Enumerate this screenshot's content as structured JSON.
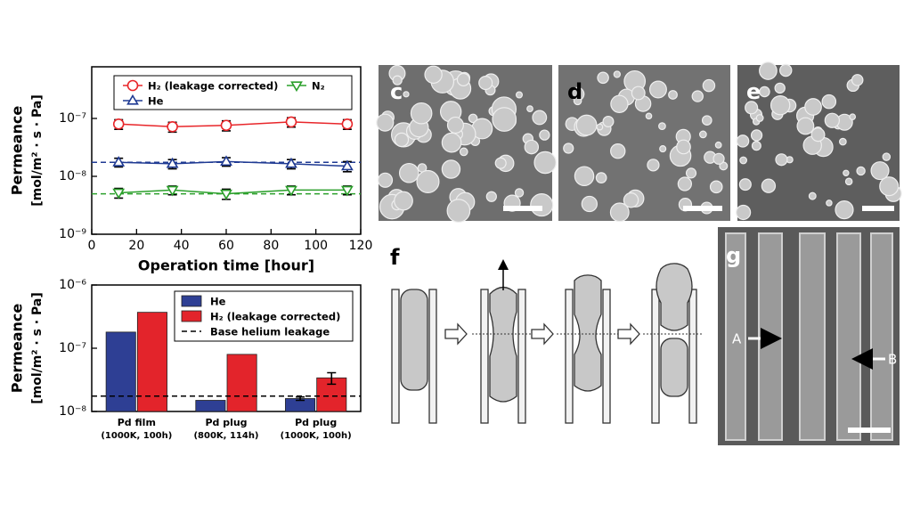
{
  "chart_data": [
    {
      "type": "line",
      "ylabel": [
        "Permeance",
        "[mol/m² · s · Pa]"
      ],
      "xlabel": "Operation time [hour]",
      "xlim": [
        0,
        120
      ],
      "xticks": [
        0,
        20,
        40,
        60,
        80,
        100,
        120
      ],
      "ylim": [
        1e-09,
        7.8e-07
      ],
      "log_y": true,
      "yticks": [
        {
          "value": 1e-09,
          "label": "10⁻⁹"
        },
        {
          "value": 1e-08,
          "label": "10⁻⁸"
        },
        {
          "value": 1e-07,
          "label": "10⁻⁷"
        }
      ],
      "x": [
        12,
        36,
        60,
        89,
        114
      ],
      "series": [
        {
          "name": "H₂ (leakage corrected)",
          "color": "#e8262a",
          "marker": "circle",
          "values": [
            8e-08,
            7.2e-08,
            7.6e-08,
            8.7e-08,
            8e-08
          ],
          "errors": [
            1.5e-08,
            1.4e-08,
            1.5e-08,
            1.6e-08,
            1.5e-08
          ]
        },
        {
          "name": "He",
          "color": "#1f3a93",
          "marker": "triangle-up",
          "values": [
            1.75e-08,
            1.65e-08,
            1.8e-08,
            1.65e-08,
            1.5e-08
          ],
          "errors": [
            3e-09,
            3e-09,
            3e-09,
            3e-09,
            3e-09
          ]
        },
        {
          "name": "N₂",
          "color": "#2ca02c",
          "marker": "triangle-down",
          "values": [
            5.2e-09,
            5.8e-09,
            5e-09,
            5.8e-09,
            5.8e-09
          ],
          "errors": [
            1e-09,
            1e-09,
            1e-09,
            1e-09,
            1e-09
          ]
        }
      ],
      "reference_lines": [
        {
          "value": 1.75e-08,
          "color": "#1f3a93"
        },
        {
          "value": 5e-09,
          "color": "#2ca02c"
        }
      ],
      "legend": "top"
    },
    {
      "type": "bar",
      "ylabel": [
        "Permeance",
        "[mol/m² · s · Pa]"
      ],
      "ylim": [
        1e-08,
        1e-06
      ],
      "log_y": true,
      "yticks": [
        {
          "value": 1e-08,
          "label": "10⁻⁸"
        },
        {
          "value": 1e-07,
          "label": "10⁻⁷"
        },
        {
          "value": 1e-06,
          "label": "10⁻⁶"
        }
      ],
      "categories": [
        "Pd film",
        "Pd plug",
        "Pd plug"
      ],
      "category_sublabels": [
        "(1000K, 100h)",
        "(800K, 114h)",
        "(1000K, 100h)"
      ],
      "series": [
        {
          "name": "He",
          "color": "#2e3f94",
          "values": [
            1.8e-07,
            1.5e-08,
            1.6e-08
          ],
          "errors": [
            null,
            null,
            1e-09
          ]
        },
        {
          "name": "H₂ (leakage corrected)",
          "color": "#e3242b",
          "values": [
            3.7e-07,
            8e-08,
            3.4e-08
          ],
          "errors": [
            null,
            null,
            7e-09
          ]
        }
      ],
      "reference_line": {
        "name": "Base helium leakage",
        "value": 1.75e-08,
        "color": "#000000"
      },
      "legend": "top right"
    }
  ],
  "panels": {
    "c": "c",
    "d": "d",
    "e": "e",
    "f": "f",
    "g": "g",
    "arrow_a": "A",
    "arrow_b": "B"
  }
}
